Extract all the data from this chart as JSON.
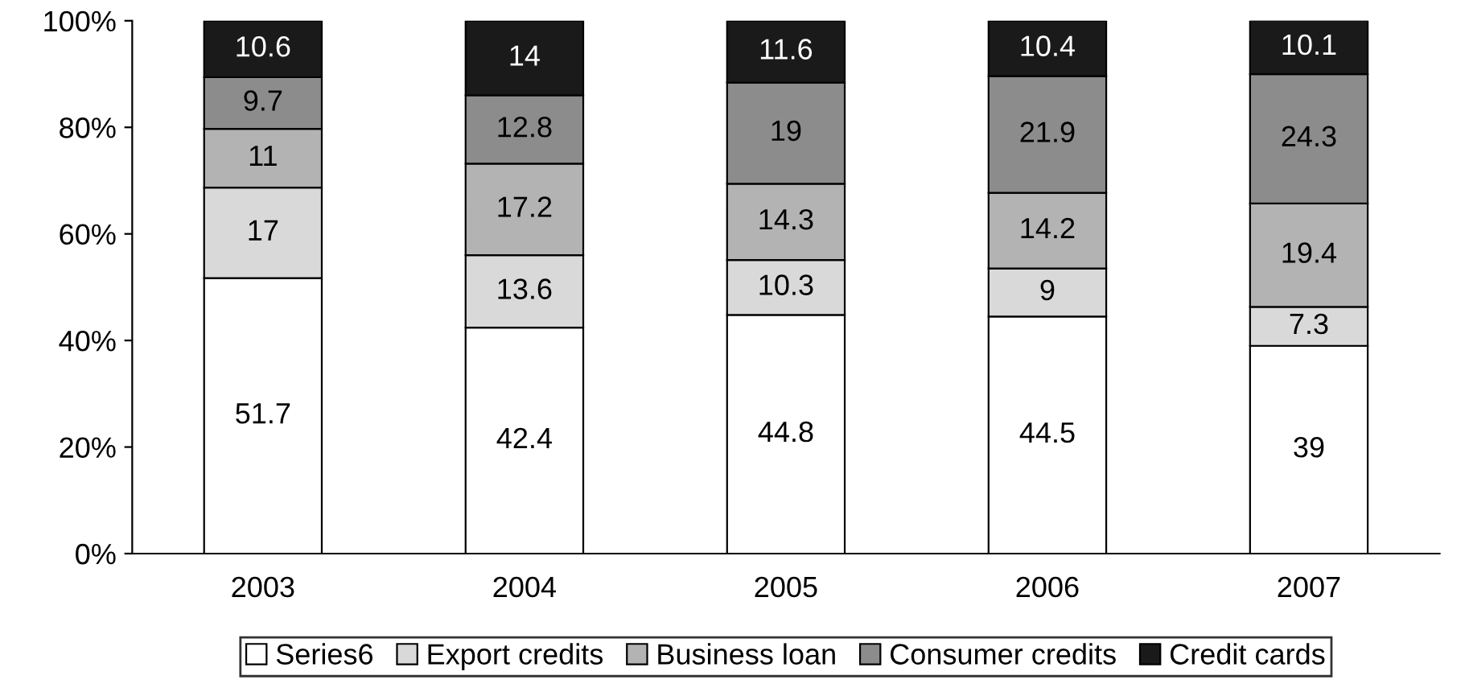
{
  "chart_data": {
    "type": "bar",
    "stacked": true,
    "categories": [
      "2003",
      "2004",
      "2005",
      "2006",
      "2007"
    ],
    "series": [
      {
        "name": "Series6",
        "color": "#ffffff",
        "values": [
          51.7,
          42.4,
          44.8,
          44.5,
          39
        ]
      },
      {
        "name": "Export credits",
        "color": "#d9d9d9",
        "values": [
          17,
          13.6,
          10.3,
          9,
          7.3
        ]
      },
      {
        "name": "Business loan",
        "color": "#b3b3b3",
        "values": [
          11,
          17.2,
          14.3,
          14.2,
          19.4
        ]
      },
      {
        "name": "Consumer credits",
        "color": "#8c8c8c",
        "values": [
          9.7,
          12.8,
          19,
          21.9,
          24.3
        ]
      },
      {
        "name": "Credit cards",
        "color": "#1a1a1a",
        "values": [
          10.6,
          14,
          11.6,
          10.4,
          10.1
        ]
      }
    ],
    "ylim": [
      0,
      100
    ],
    "yticks": [
      {
        "value": 0,
        "label": "0%"
      },
      {
        "value": 20,
        "label": "20%"
      },
      {
        "value": 40,
        "label": "40%"
      },
      {
        "value": 60,
        "label": "60%"
      },
      {
        "value": 80,
        "label": "80%"
      },
      {
        "value": 100,
        "label": "100%"
      }
    ],
    "data_labels": true,
    "legend": "bottom",
    "grid": false
  }
}
